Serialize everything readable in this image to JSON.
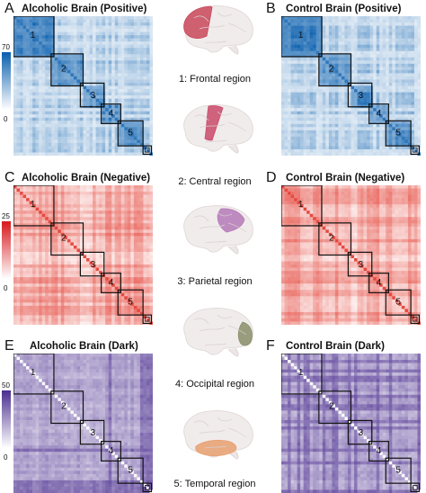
{
  "panels": [
    {
      "letter": "A",
      "title": "Alcoholic Brain (Positive)",
      "theme": "blue"
    },
    {
      "letter": "B",
      "title": "Control  Brain (Positive)",
      "theme": "blue"
    },
    {
      "letter": "C",
      "title": "Alcoholic Brain (Negative)",
      "theme": "red"
    },
    {
      "letter": "D",
      "title": "Control  Brain (Negative)",
      "theme": "red"
    },
    {
      "letter": "E",
      "title": "Alcoholic Brain (Dark)",
      "theme": "purple"
    },
    {
      "letter": "F",
      "title": "Control  Brain (Dark)",
      "theme": "purple"
    }
  ],
  "colorbars": [
    {
      "max": "70",
      "min": "0",
      "color": "#0a5fae"
    },
    {
      "max": "25",
      "min": "0",
      "color": "#d7191c"
    },
    {
      "max": "50",
      "min": "0",
      "color": "#4b2e8f"
    }
  ],
  "block_labels": [
    "1",
    "2",
    "3",
    "4",
    "5"
  ],
  "regions": [
    {
      "label": "1: Frontal region",
      "color": "#c9485b"
    },
    {
      "label": "2: Central region",
      "color": "#c94a6a"
    },
    {
      "label": "3: Parietal region",
      "color": "#b57ab8"
    },
    {
      "label": "4: Occipital region",
      "color": "#8a8f6a"
    },
    {
      "label": "5: Temporal region",
      "color": "#e8a070"
    }
  ],
  "theme_colors": {
    "blue": "#0a5fae",
    "red": "#e02a1e",
    "purple": "#4b2e8f"
  }
}
